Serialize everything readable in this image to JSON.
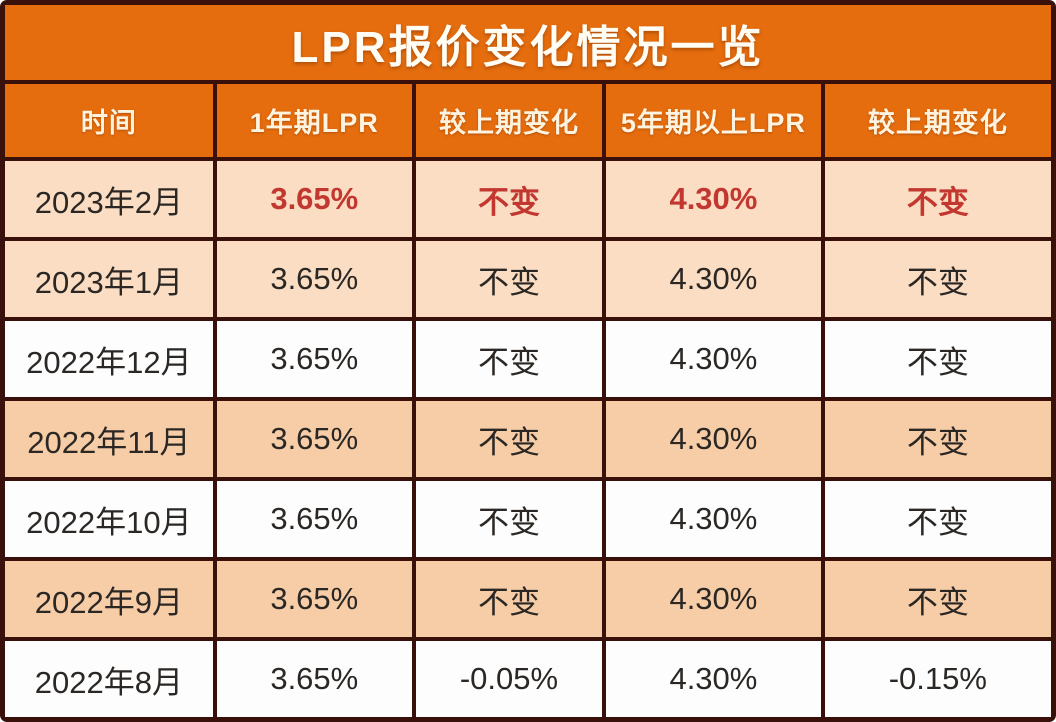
{
  "title": "LPR报价变化情况一览",
  "table": {
    "headers": [
      "时间",
      "1年期LPR",
      "较上期变化",
      "5年期以上LPR",
      "较上期变化"
    ],
    "rows": [
      {
        "time": "2023年2月",
        "lpr_1y": "3.65%",
        "change_1y": "不变",
        "lpr_5y": "4.30%",
        "change_5y": "不变",
        "highlighted": true
      },
      {
        "time": "2023年1月",
        "lpr_1y": "3.65%",
        "change_1y": "不变",
        "lpr_5y": "4.30%",
        "change_5y": "不变",
        "highlighted": false
      },
      {
        "time": "2022年12月",
        "lpr_1y": "3.65%",
        "change_1y": "不变",
        "lpr_5y": "4.30%",
        "change_5y": "不变",
        "highlighted": false
      },
      {
        "time": "2022年11月",
        "lpr_1y": "3.65%",
        "change_1y": "不变",
        "lpr_5y": "4.30%",
        "change_5y": "不变",
        "highlighted": false
      },
      {
        "time": "2022年10月",
        "lpr_1y": "3.65%",
        "change_1y": "不变",
        "lpr_5y": "4.30%",
        "change_5y": "不变",
        "highlighted": false
      },
      {
        "time": "2022年9月",
        "lpr_1y": "3.65%",
        "change_1y": "不变",
        "lpr_5y": "4.30%",
        "change_5y": "不变",
        "highlighted": false
      },
      {
        "time": "2022年8月",
        "lpr_1y": "3.65%",
        "change_1y": "-0.05%",
        "lpr_5y": "4.30%",
        "change_5y": "-0.15%",
        "highlighted": false
      }
    ]
  },
  "colors": {
    "banner_orange": "#E56D0E",
    "border_dark": "#3A100A",
    "row_peach": "#FADDC2",
    "row_peach_deep": "#F7CDA7",
    "row_white": "#FDFDFD",
    "highlight_red": "#C23730",
    "text_dark": "#2B2724",
    "header_text": "#FDF3DF"
  }
}
